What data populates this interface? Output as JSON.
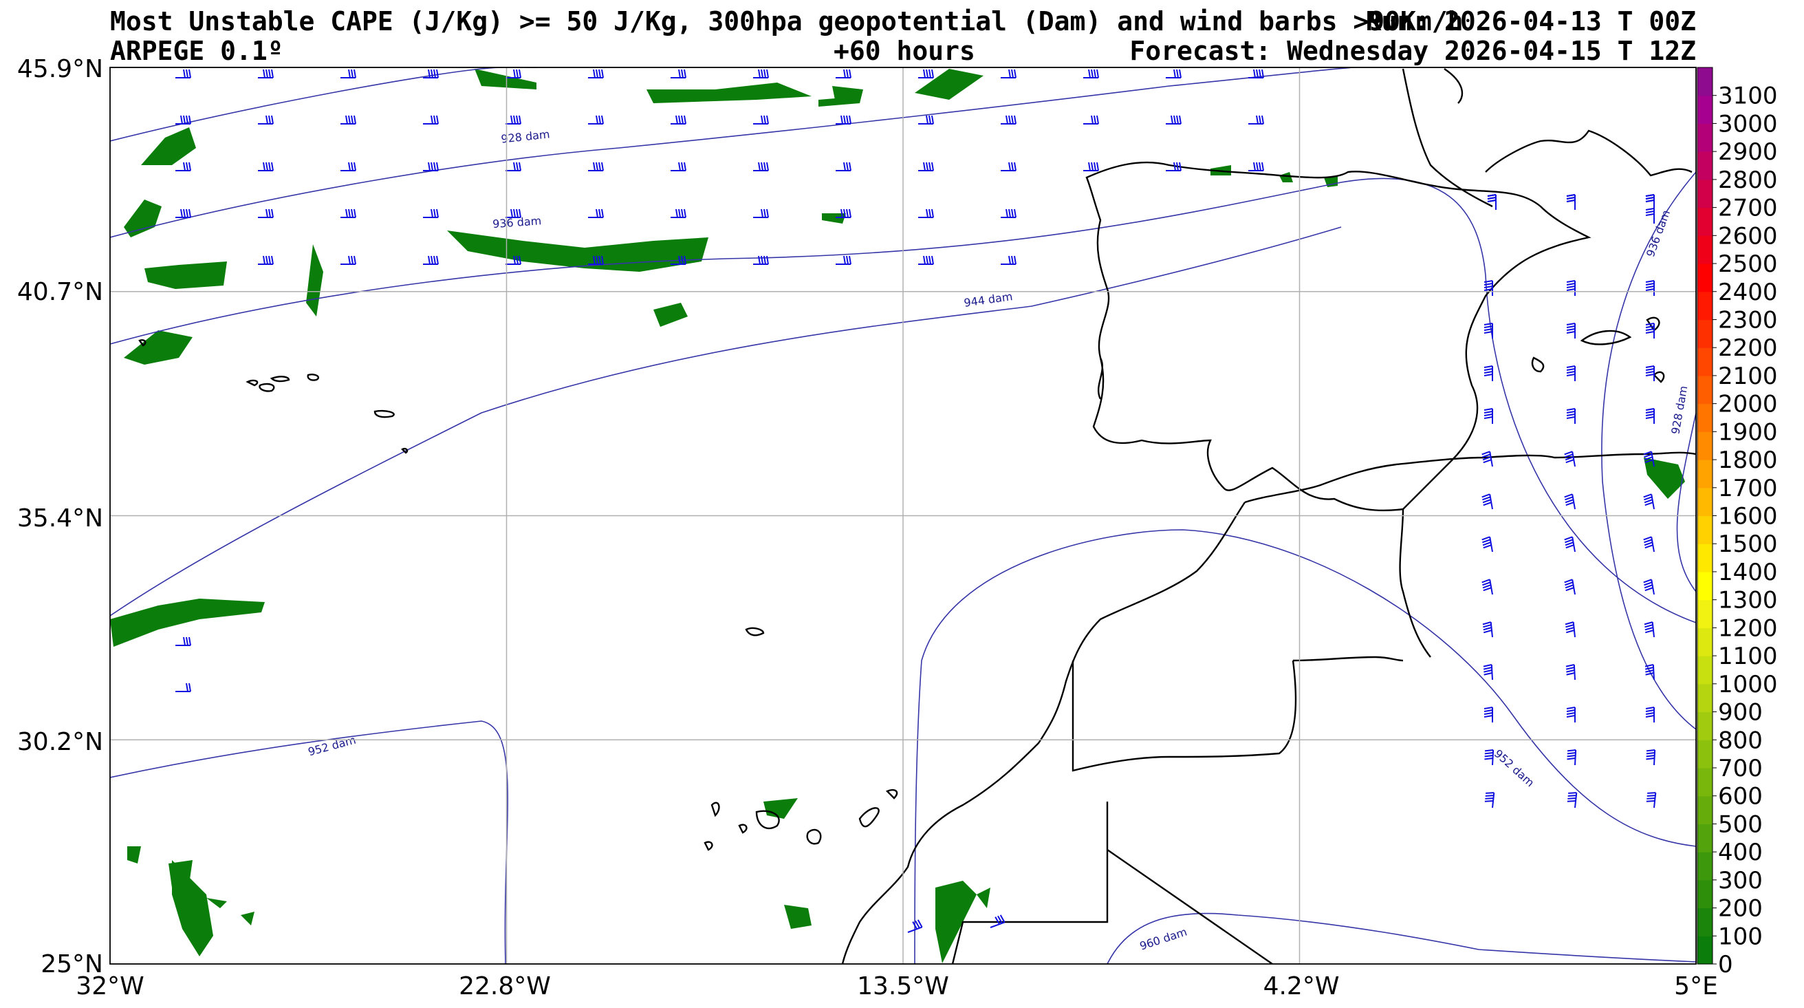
{
  "header": {
    "title_line1": "Most Unstable CAPE (J/Kg) >= 50 J/Kg, 300hpa geopotential (Dam) and wind barbs >90Km/h",
    "run": "Run: 2026-04-13 T 00Z",
    "model": "ARPEGE 0.1º",
    "lead": "+60 hours",
    "forecast": "Forecast: Wednesday 2026-04-15 T 12Z"
  },
  "axes": {
    "lon_ticks": [
      "32°W",
      "22.8°W",
      "13.5°W",
      "4.2°W",
      "5°E"
    ],
    "lat_ticks": [
      "45.9°N",
      "40.7°N",
      "35.4°N",
      "30.2°N",
      "25°N"
    ],
    "grid": true
  },
  "map": {
    "extent": {
      "lon_min": -32,
      "lon_max": 5,
      "lat_min": 25,
      "lat_max": 45.9
    },
    "cape_color": "#0a7d0a",
    "contour_color": "#3535a8",
    "contour_labels": [
      {
        "text": "928 dam",
        "lon": -22.3,
        "lat": 44.2,
        "angle": -6
      },
      {
        "text": "936 dam",
        "lon": -22.5,
        "lat": 42.2,
        "angle": -4
      },
      {
        "text": "944 dam",
        "lon": -11.5,
        "lat": 40.4,
        "angle": -8
      },
      {
        "text": "952 dam",
        "lon": -26.8,
        "lat": 30.0,
        "angle": -15
      },
      {
        "text": "960 dam",
        "lon": -7.4,
        "lat": 25.5,
        "angle": -18
      },
      {
        "text": "936 dam",
        "lon": 4.2,
        "lat": 42.0,
        "angle": -70
      },
      {
        "text": "928 dam",
        "lon": 4.7,
        "lat": 37.9,
        "angle": -80
      },
      {
        "text": "952 dam",
        "lon": 0.7,
        "lat": 29.5,
        "angle": 42
      }
    ],
    "barb_color": "#1010e0",
    "coast_color": "#000000"
  },
  "colorbar": {
    "labels": [
      "0",
      "100",
      "200",
      "300",
      "400",
      "500",
      "600",
      "700",
      "800",
      "900",
      "1000",
      "1100",
      "1200",
      "1300",
      "1400",
      "1500",
      "1600",
      "1700",
      "1800",
      "1900",
      "2000",
      "2100",
      "2200",
      "2300",
      "2400",
      "2500",
      "2600",
      "2700",
      "2800",
      "2900",
      "3000",
      "3100"
    ],
    "colors": [
      "#0a7d0a",
      "#1a850a",
      "#2d8f0a",
      "#3e980b",
      "#52a30c",
      "#66ad0c",
      "#79b70d",
      "#8cc10e",
      "#a0cb0f",
      "#b4d510",
      "#c8df10",
      "#dde811",
      "#f1f212",
      "#ffff00",
      "#ffe800",
      "#ffd100",
      "#ffba00",
      "#ffa300",
      "#ff8c00",
      "#ff7500",
      "#ff5e00",
      "#ff4700",
      "#ff3000",
      "#ff1900",
      "#ff0000",
      "#f00018",
      "#e10030",
      "#d20048",
      "#c30060",
      "#b40078",
      "#a50090",
      "#8e0a8e"
    ]
  }
}
